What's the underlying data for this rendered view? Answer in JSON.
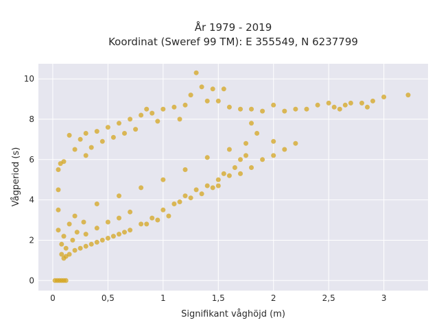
{
  "chart_data": {
    "type": "scatter",
    "title_line1": "År 1979 - 2019",
    "title_line2": "Koordinat (Sweref 99 TM): E 355549, N 6237799",
    "xlabel": "Signifikant våghöjd (m)",
    "ylabel": "Vågperiod (s)",
    "xlim": [
      -0.13,
      3.4
    ],
    "ylim": [
      -0.5,
      10.75
    ],
    "x_ticks": [
      0,
      0.5,
      1,
      1.5,
      2,
      2.5,
      3
    ],
    "x_tick_labels": [
      "0",
      "0,5",
      "1",
      "1,5",
      "2",
      "2,5",
      "3"
    ],
    "y_ticks": [
      0,
      2,
      4,
      6,
      8,
      10
    ],
    "y_tick_labels": [
      "0",
      "2",
      "4",
      "6",
      "8",
      "10"
    ],
    "grid": true,
    "marker_color": "#D4A520",
    "plot_background": "#E6E6EF",
    "series": [
      {
        "values": [
          [
            0.02,
            0.0
          ],
          [
            0.04,
            0.0
          ],
          [
            0.06,
            0.0
          ],
          [
            0.08,
            0.0
          ],
          [
            0.1,
            0.0
          ],
          [
            0.12,
            0.0
          ],
          [
            0.1,
            1.1
          ],
          [
            0.12,
            1.2
          ],
          [
            0.08,
            1.3
          ],
          [
            0.15,
            1.3
          ],
          [
            0.2,
            1.5
          ],
          [
            0.25,
            1.6
          ],
          [
            0.3,
            1.7
          ],
          [
            0.35,
            1.8
          ],
          [
            0.4,
            1.9
          ],
          [
            0.45,
            2.0
          ],
          [
            0.5,
            2.1
          ],
          [
            0.55,
            2.2
          ],
          [
            0.6,
            2.3
          ],
          [
            0.65,
            2.4
          ],
          [
            0.7,
            2.5
          ],
          [
            0.8,
            2.8
          ],
          [
            0.9,
            3.1
          ],
          [
            1.0,
            3.5
          ],
          [
            1.1,
            3.8
          ],
          [
            1.2,
            4.2
          ],
          [
            1.3,
            4.5
          ],
          [
            1.4,
            4.7
          ],
          [
            1.5,
            4.7
          ],
          [
            1.6,
            5.2
          ],
          [
            1.7,
            5.3
          ],
          [
            1.8,
            5.6
          ],
          [
            1.9,
            6.0
          ],
          [
            2.0,
            6.2
          ],
          [
            2.1,
            6.5
          ],
          [
            2.2,
            6.8
          ],
          [
            0.05,
            2.5
          ],
          [
            0.05,
            3.5
          ],
          [
            0.05,
            4.5
          ],
          [
            0.05,
            5.5
          ],
          [
            0.07,
            5.8
          ],
          [
            0.1,
            5.9
          ],
          [
            0.15,
            7.2
          ],
          [
            0.2,
            6.5
          ],
          [
            0.25,
            7.0
          ],
          [
            0.3,
            7.3
          ],
          [
            0.4,
            7.4
          ],
          [
            0.5,
            7.6
          ],
          [
            0.6,
            7.8
          ],
          [
            0.7,
            8.0
          ],
          [
            0.8,
            8.2
          ],
          [
            0.85,
            8.5
          ],
          [
            0.9,
            8.3
          ],
          [
            1.0,
            8.5
          ],
          [
            1.1,
            8.6
          ],
          [
            1.2,
            8.7
          ],
          [
            1.25,
            9.2
          ],
          [
            1.3,
            10.3
          ],
          [
            1.35,
            9.6
          ],
          [
            1.4,
            8.9
          ],
          [
            1.45,
            9.5
          ],
          [
            1.5,
            8.9
          ],
          [
            1.55,
            9.5
          ],
          [
            1.6,
            8.6
          ],
          [
            1.7,
            8.5
          ],
          [
            1.8,
            8.5
          ],
          [
            1.9,
            8.4
          ],
          [
            2.0,
            8.7
          ],
          [
            2.1,
            8.4
          ],
          [
            2.2,
            8.5
          ],
          [
            2.3,
            8.5
          ],
          [
            2.4,
            8.7
          ],
          [
            2.5,
            8.8
          ],
          [
            2.55,
            8.6
          ],
          [
            2.6,
            8.5
          ],
          [
            2.65,
            8.7
          ],
          [
            2.7,
            8.8
          ],
          [
            2.8,
            8.8
          ],
          [
            2.85,
            8.6
          ],
          [
            2.9,
            8.9
          ],
          [
            3.0,
            9.1
          ],
          [
            3.22,
            9.2
          ],
          [
            1.75,
            6.8
          ],
          [
            1.85,
            7.3
          ],
          [
            1.8,
            7.8
          ],
          [
            2.0,
            6.9
          ],
          [
            0.3,
            6.2
          ],
          [
            0.35,
            6.6
          ],
          [
            0.45,
            6.9
          ],
          [
            0.55,
            7.1
          ],
          [
            0.65,
            7.3
          ],
          [
            0.75,
            7.5
          ],
          [
            0.95,
            7.9
          ],
          [
            1.15,
            8.0
          ],
          [
            0.3,
            2.3
          ],
          [
            0.4,
            2.6
          ],
          [
            0.5,
            2.9
          ],
          [
            0.6,
            3.1
          ],
          [
            0.7,
            3.4
          ],
          [
            0.85,
            2.8
          ],
          [
            0.95,
            3.0
          ],
          [
            1.05,
            3.2
          ],
          [
            1.15,
            3.9
          ],
          [
            1.25,
            4.1
          ],
          [
            1.35,
            4.3
          ],
          [
            1.45,
            4.6
          ],
          [
            1.5,
            5.0
          ],
          [
            1.55,
            5.3
          ],
          [
            1.65,
            5.6
          ],
          [
            1.7,
            6.0
          ],
          [
            1.75,
            6.2
          ],
          [
            1.6,
            6.5
          ],
          [
            1.4,
            6.1
          ],
          [
            1.2,
            5.5
          ],
          [
            1.0,
            5.0
          ],
          [
            0.8,
            4.6
          ],
          [
            0.6,
            4.2
          ],
          [
            0.4,
            3.8
          ],
          [
            0.2,
            3.2
          ],
          [
            0.15,
            2.8
          ],
          [
            0.1,
            2.2
          ],
          [
            0.08,
            1.8
          ],
          [
            0.12,
            1.6
          ],
          [
            0.18,
            2.0
          ],
          [
            0.22,
            2.4
          ],
          [
            0.28,
            2.9
          ]
        ]
      }
    ]
  }
}
